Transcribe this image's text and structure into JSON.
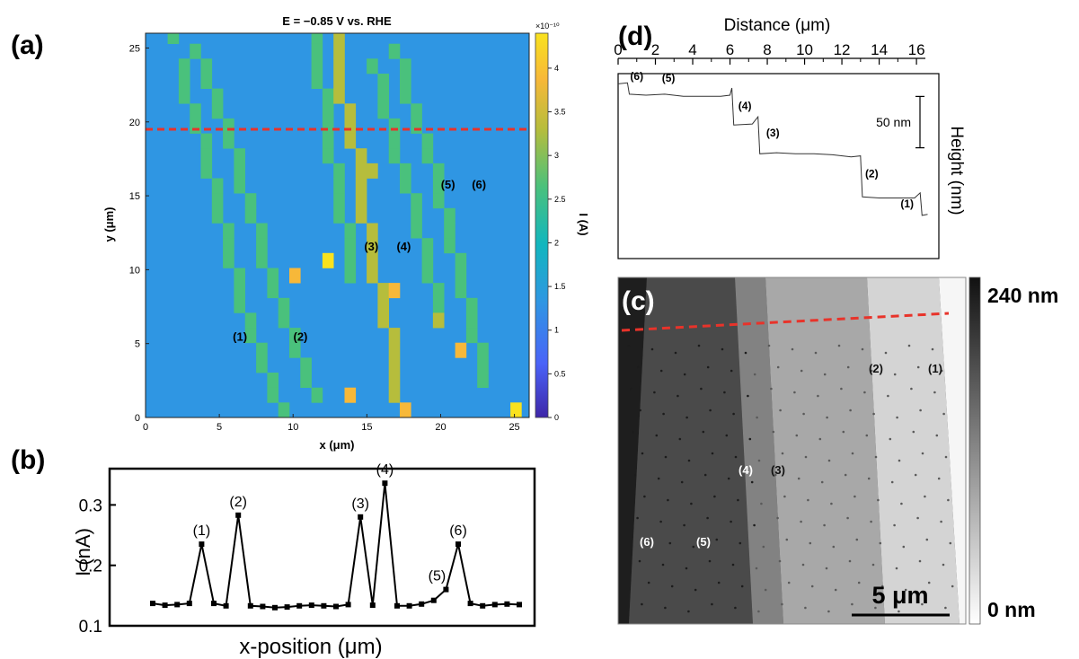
{
  "chart_data": [
    {
      "panel_label": "(a)",
      "type": "heatmap",
      "title": "E = −0.85 V vs. RHE",
      "xlabel": "x (μm)",
      "ylabel": "y (μm)",
      "xlim": [
        0,
        26
      ],
      "ylim": [
        0,
        26
      ],
      "x_ticks": [
        "0",
        "5",
        "10",
        "15",
        "20",
        "25"
      ],
      "y_ticks": [
        "0",
        "5",
        "10",
        "15",
        "20",
        "25"
      ],
      "background_value": 1.55,
      "colorbar": {
        "label": "I (A)",
        "exponent_label": "×10⁻¹⁰",
        "range": [
          0,
          4.4
        ],
        "ticks": [
          "0",
          "0.5",
          "1",
          "1.5",
          "2",
          "2.5",
          "3",
          "3.5",
          "4"
        ],
        "colors": [
          "#3e26a8",
          "#4a63f8",
          "#2f96e3",
          "#12b6be",
          "#4ac17c",
          "#b6bd3c",
          "#f7b839",
          "#f9e21e"
        ]
      },
      "dashed_line_y": 19.5,
      "dashed_line_color": "#e8332a",
      "stripes": [
        {
          "cells": [
            [
              2,
              25
            ],
            [
              3,
              23
            ],
            [
              3,
              22
            ],
            [
              3,
              21
            ],
            [
              4,
              20
            ],
            [
              4,
              19
            ],
            [
              5,
              18
            ],
            [
              5,
              17
            ],
            [
              5,
              16
            ],
            [
              6,
              15
            ],
            [
              6,
              14
            ],
            [
              6,
              13
            ],
            [
              7,
              12
            ],
            [
              7,
              11
            ],
            [
              7,
              10
            ],
            [
              8,
              9
            ],
            [
              8,
              8
            ],
            [
              8,
              7
            ],
            [
              9,
              6
            ],
            [
              9,
              5
            ],
            [
              10,
              4
            ],
            [
              10,
              3
            ],
            [
              11,
              2
            ],
            [
              11,
              1
            ],
            [
              12,
              0
            ]
          ],
          "value": 2.8
        },
        {
          "cells": [
            [
              4,
              24
            ],
            [
              5,
              23
            ],
            [
              5,
              22
            ],
            [
              6,
              21
            ],
            [
              6,
              20
            ],
            [
              7,
              19
            ],
            [
              7,
              18
            ],
            [
              8,
              17
            ],
            [
              8,
              16
            ],
            [
              8,
              15
            ],
            [
              9,
              14
            ],
            [
              9,
              13
            ],
            [
              10,
              12
            ],
            [
              10,
              11
            ],
            [
              10,
              10
            ],
            [
              11,
              9
            ],
            [
              11,
              8
            ],
            [
              12,
              7
            ],
            [
              12,
              6
            ],
            [
              13,
              5
            ],
            [
              13,
              4
            ],
            [
              14,
              3
            ],
            [
              14,
              2
            ],
            [
              15,
              1
            ]
          ],
          "value": 2.6
        },
        {
          "cells": [
            [
              15,
              25
            ],
            [
              15,
              24
            ],
            [
              15,
              23
            ],
            [
              15,
              22
            ],
            [
              16,
              21
            ],
            [
              16,
              20
            ],
            [
              16,
              19
            ],
            [
              16,
              18
            ],
            [
              16,
              17
            ],
            [
              17,
              16
            ],
            [
              17,
              15
            ],
            [
              17,
              14
            ],
            [
              17,
              13
            ],
            [
              18,
              12
            ],
            [
              18,
              11
            ],
            [
              18,
              10
            ],
            [
              18,
              9
            ]
          ],
          "value": 2.7
        },
        {
          "cells": [
            [
              17,
              25
            ],
            [
              17,
              24
            ],
            [
              17,
              23
            ],
            [
              17,
              22
            ],
            [
              17,
              21
            ],
            [
              18,
              20
            ],
            [
              18,
              19
            ],
            [
              18,
              18
            ],
            [
              19,
              17
            ],
            [
              19,
              16
            ],
            [
              19,
              15
            ],
            [
              19,
              14
            ],
            [
              19,
              13
            ],
            [
              20,
              12
            ],
            [
              20,
              11
            ],
            [
              20,
              10
            ],
            [
              20,
              9
            ],
            [
              21,
              8
            ],
            [
              21,
              7
            ],
            [
              21,
              6
            ],
            [
              22,
              5
            ],
            [
              22,
              4
            ],
            [
              22,
              3
            ],
            [
              22,
              2
            ],
            [
              22,
              1
            ]
          ],
          "value": 3.2
        },
        {
          "cells": [
            [
              20,
              23
            ],
            [
              21,
              22
            ],
            [
              21,
              21
            ],
            [
              21,
              20
            ],
            [
              22,
              19
            ],
            [
              22,
              18
            ],
            [
              22,
              17
            ],
            [
              23,
              16
            ],
            [
              23,
              15
            ],
            [
              24,
              14
            ],
            [
              24,
              13
            ],
            [
              24,
              12
            ],
            [
              25,
              11
            ],
            [
              25,
              10
            ],
            [
              25,
              9
            ],
            [
              26,
              8
            ],
            [
              26,
              7
            ],
            [
              26,
              6
            ]
          ],
          "value": 2.3
        },
        {
          "cells": [
            [
              22,
              24
            ],
            [
              23,
              23
            ],
            [
              23,
              22
            ],
            [
              23,
              21
            ],
            [
              24,
              20
            ],
            [
              24,
              19
            ],
            [
              25,
              18
            ],
            [
              25,
              17
            ],
            [
              26,
              16
            ],
            [
              26,
              15
            ],
            [
              26,
              14
            ],
            [
              27,
              13
            ],
            [
              27,
              12
            ],
            [
              27,
              11
            ],
            [
              28,
              10
            ],
            [
              28,
              9
            ],
            [
              28,
              8
            ],
            [
              29,
              7
            ],
            [
              29,
              6
            ],
            [
              29,
              5
            ],
            [
              30,
              4
            ],
            [
              30,
              3
            ],
            [
              30,
              2
            ]
          ],
          "value": 2.4
        }
      ],
      "hot_cells": [
        {
          "cell": [
            13,
            9
          ],
          "value": 3.9
        },
        {
          "cell": [
            16,
            10
          ],
          "value": 4.4
        },
        {
          "cell": [
            18,
            1
          ],
          "value": 3.8
        },
        {
          "cell": [
            23,
            0
          ],
          "value": 3.7
        },
        {
          "cell": [
            28,
            4
          ],
          "value": 3.9
        },
        {
          "cell": [
            22,
            8
          ],
          "value": 3.6
        },
        {
          "cell": [
            20,
            16
          ],
          "value": 3.4
        },
        {
          "cell": [
            33,
            0
          ],
          "value": 4.3
        },
        {
          "cell": [
            26,
            6
          ],
          "value": 3.3
        }
      ],
      "annotations": [
        {
          "text": "(1)",
          "x": 6.4,
          "y": 5.2
        },
        {
          "text": "(2)",
          "x": 10.5,
          "y": 5.2
        },
        {
          "text": "(3)",
          "x": 15.3,
          "y": 11.3
        },
        {
          "text": "(4)",
          "x": 17.5,
          "y": 11.3
        },
        {
          "text": "(5)",
          "x": 20.5,
          "y": 15.5
        },
        {
          "text": "(6)",
          "x": 22.6,
          "y": 15.5
        }
      ]
    },
    {
      "panel_label": "(b)",
      "type": "line",
      "xlabel": "x-position (μm)",
      "ylabel": "I (nA)",
      "ylim": [
        0.1,
        0.36
      ],
      "y_ticks": [
        "0.1",
        "0.2",
        "0.3"
      ],
      "y_tick_values": [
        0.1,
        0.2,
        0.3
      ],
      "values": [
        0.137,
        0.134,
        0.135,
        0.137,
        0.235,
        0.137,
        0.133,
        0.283,
        0.133,
        0.132,
        0.13,
        0.131,
        0.133,
        0.134,
        0.133,
        0.132,
        0.135,
        0.28,
        0.134,
        0.336,
        0.133,
        0.133,
        0.136,
        0.142,
        0.16,
        0.235,
        0.137,
        0.133,
        0.135,
        0.136,
        0.135
      ],
      "annotations": [
        {
          "text": "(1)",
          "index": 4
        },
        {
          "text": "(2)",
          "index": 7
        },
        {
          "text": "(3)",
          "index": 17
        },
        {
          "text": "(4)",
          "index": 19
        },
        {
          "text": "(5)",
          "index": 24
        },
        {
          "text": "(6)",
          "index": 25
        }
      ]
    },
    {
      "panel_label": "(d)",
      "type": "line",
      "xlabel": "Distance (μm)",
      "ylabel": "Height (nm)",
      "xlim": [
        0,
        17.2
      ],
      "x_ticks": [
        "0",
        "2",
        "4",
        "6",
        "8",
        "10",
        "12",
        "14",
        "16"
      ],
      "x_tick_values": [
        0,
        2,
        4,
        6,
        8,
        10,
        12,
        14,
        16
      ],
      "ylim": [
        0,
        180
      ],
      "scale_bar_label": "50 nm",
      "scale_bar_value": 50,
      "x": [
        0,
        0.5,
        0.6,
        1.5,
        2.5,
        3.5,
        4.5,
        5.5,
        6.0,
        6.1,
        6.2,
        7.2,
        7.5,
        7.6,
        8.5,
        9.5,
        10.5,
        11.5,
        12.5,
        13.0,
        13.1,
        14.0,
        15.0,
        15.9,
        16.2,
        16.3,
        16.6
      ],
      "values": [
        170,
        171,
        160,
        159,
        160,
        158,
        158,
        158,
        159,
        166,
        130,
        131,
        138,
        102,
        103,
        102,
        102,
        101,
        99,
        100,
        60,
        59,
        59,
        59,
        64,
        42,
        43
      ],
      "annotations": [
        {
          "text": "(6)",
          "x": 1.0,
          "y": 174
        },
        {
          "text": "(5)",
          "x": 2.7,
          "y": 172
        },
        {
          "text": "(4)",
          "x": 6.8,
          "y": 145
        },
        {
          "text": "(3)",
          "x": 8.3,
          "y": 119
        },
        {
          "text": "(2)",
          "x": 13.6,
          "y": 79
        },
        {
          "text": "(1)",
          "x": 15.5,
          "y": 50
        }
      ]
    },
    {
      "panel_label": "(c)",
      "type": "image",
      "colorbar_top_label": "240 nm",
      "colorbar_bottom_label": "0 nm",
      "scale_bar_label": "5 μm",
      "dashed_line_color": "#e8332a",
      "annotations": [
        "(6)",
        "(5)",
        "(4)",
        "(3)",
        "(2)",
        "(1)"
      ]
    }
  ]
}
